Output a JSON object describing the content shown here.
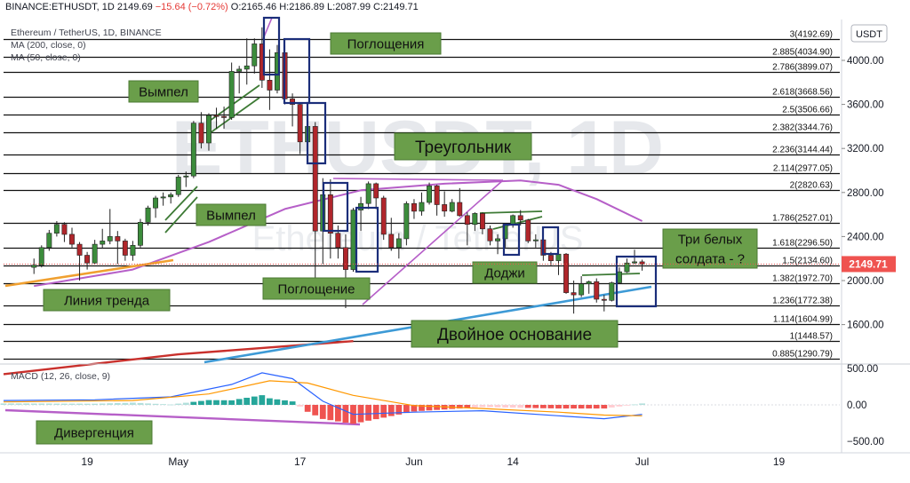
{
  "header": {
    "symbol": "BINANCE:ETHUSDT, 1D",
    "last": "2149.69",
    "change": "−15.64 (−0.72%)",
    "open": "O:2165.46",
    "high": "H:2186.89",
    "low": "L:2087.99",
    "close": "C:2149.71"
  },
  "legend": {
    "title": "Ethereum / TetherUS, 1D, BINANCE",
    "ma200": "MA (200, close, 0)",
    "ma50": "MA (50, close, 0)",
    "macd": "MACD (12, 26, close, 9)"
  },
  "watermark": {
    "symbol": "ETHUSDT, 1D",
    "name": "Ethereum / TetherUS"
  },
  "axis": {
    "currency": "USDT",
    "current_price": "2149.71",
    "price_ticks": [
      "4000.00",
      "3600.00",
      "3200.00",
      "2800.00",
      "2400.00",
      "2000.00",
      "1600.00"
    ],
    "macd_ticks": [
      "500.00",
      "0.00",
      "−500.00"
    ],
    "x_ticks": [
      "19",
      "May",
      "17",
      "Jun",
      "14",
      "Jul",
      "19"
    ]
  },
  "fib_levels": [
    {
      "label": "3(4192.69)",
      "value": 4192.69
    },
    {
      "label": "2.885(4034.90)",
      "value": 4034.9
    },
    {
      "label": "2.786(3899.07)",
      "value": 3899.07
    },
    {
      "label": "2.618(3668.56)",
      "value": 3668.56
    },
    {
      "label": "2.5(3506.66)",
      "value": 3506.66
    },
    {
      "label": "2.382(3344.76)",
      "value": 3344.76
    },
    {
      "label": "2.236(3144.44)",
      "value": 3144.44
    },
    {
      "label": "2.114(2977.05)",
      "value": 2977.05
    },
    {
      "label": "2(2820.63)",
      "value": 2820.63
    },
    {
      "label": "1.786(2527.01)",
      "value": 2527.01
    },
    {
      "label": "1.618(2296.50)",
      "value": 2296.5
    },
    {
      "label": "1.5(2134.60)",
      "value": 2134.6
    },
    {
      "label": "1.382(1972.70)",
      "value": 1972.7
    },
    {
      "label": "1.236(1772.38)",
      "value": 1772.38
    },
    {
      "label": "1.114(1604.99)",
      "value": 1604.99
    },
    {
      "label": "1(1448.57)",
      "value": 1448.57
    },
    {
      "label": "0.885(1290.79)",
      "value": 1290.79
    }
  ],
  "annotations": {
    "pogloshcheniya": "Поглощения",
    "vympel1": "Вымпел",
    "vympel2": "Вымпел",
    "treugolnik": "Треугольник",
    "pogloshchenie": "Поглощение",
    "doji": "Доджи",
    "tri_line1": "Три белых",
    "tri_line2": "солдата - ?",
    "dvoinoe": "Двойное основание",
    "liniya": "Линия тренда",
    "divergenciya": "Дивергенция"
  },
  "colors": {
    "up": "#26a69a",
    "down": "#ef5350",
    "candle_up": "#3c8c3c",
    "candle_down": "#b0262b",
    "ma50": "#b65fc8",
    "ma200": "#c9302c",
    "trend_blue": "#3d9ad6",
    "trend_orange": "#f0a030",
    "label_bg": "#6a9e4a",
    "box": "#1b2e7a"
  },
  "chart_data": {
    "type": "candlestick",
    "title": "Ethereum / TetherUS, 1D, BINANCE",
    "x_range_dates": [
      "2021-04-08",
      "2021-07-27"
    ],
    "ylim": [
      1200,
      4250
    ],
    "candles": [
      {
        "d": "2021-04-12",
        "o": 2120,
        "h": 2200,
        "l": 2060,
        "c": 2140
      },
      {
        "d": "2021-04-13",
        "o": 2140,
        "h": 2320,
        "l": 2120,
        "c": 2300
      },
      {
        "d": "2021-04-14",
        "o": 2300,
        "h": 2460,
        "l": 2270,
        "c": 2430
      },
      {
        "d": "2021-04-15",
        "o": 2430,
        "h": 2540,
        "l": 2400,
        "c": 2510
      },
      {
        "d": "2021-04-16",
        "o": 2510,
        "h": 2530,
        "l": 2350,
        "c": 2420
      },
      {
        "d": "2021-04-17",
        "o": 2420,
        "h": 2480,
        "l": 2300,
        "c": 2330
      },
      {
        "d": "2021-04-18",
        "o": 2330,
        "h": 2350,
        "l": 2000,
        "c": 2230
      },
      {
        "d": "2021-04-19",
        "o": 2230,
        "h": 2260,
        "l": 2100,
        "c": 2160
      },
      {
        "d": "2021-04-20",
        "o": 2160,
        "h": 2370,
        "l": 2150,
        "c": 2330
      },
      {
        "d": "2021-04-21",
        "o": 2330,
        "h": 2470,
        "l": 2290,
        "c": 2360
      },
      {
        "d": "2021-04-22",
        "o": 2360,
        "h": 2650,
        "l": 2330,
        "c": 2400
      },
      {
        "d": "2021-04-23",
        "o": 2400,
        "h": 2450,
        "l": 2150,
        "c": 2360
      },
      {
        "d": "2021-04-24",
        "o": 2360,
        "h": 2380,
        "l": 2180,
        "c": 2230
      },
      {
        "d": "2021-04-25",
        "o": 2230,
        "h": 2360,
        "l": 2180,
        "c": 2320
      },
      {
        "d": "2021-04-26",
        "o": 2320,
        "h": 2560,
        "l": 2300,
        "c": 2530
      },
      {
        "d": "2021-04-27",
        "o": 2530,
        "h": 2680,
        "l": 2500,
        "c": 2660
      },
      {
        "d": "2021-04-28",
        "o": 2660,
        "h": 2770,
        "l": 2570,
        "c": 2750
      },
      {
        "d": "2021-04-29",
        "o": 2750,
        "h": 2800,
        "l": 2680,
        "c": 2760
      },
      {
        "d": "2021-04-30",
        "o": 2760,
        "h": 2800,
        "l": 2700,
        "c": 2780
      },
      {
        "d": "2021-05-01",
        "o": 2780,
        "h": 2960,
        "l": 2760,
        "c": 2940
      },
      {
        "d": "2021-05-02",
        "o": 2940,
        "h": 2990,
        "l": 2850,
        "c": 2950
      },
      {
        "d": "2021-05-03",
        "o": 2950,
        "h": 3450,
        "l": 2930,
        "c": 3430
      },
      {
        "d": "2021-05-04",
        "o": 3430,
        "h": 3530,
        "l": 3200,
        "c": 3250
      },
      {
        "d": "2021-05-05",
        "o": 3250,
        "h": 3520,
        "l": 3180,
        "c": 3500
      },
      {
        "d": "2021-05-06",
        "o": 3500,
        "h": 3570,
        "l": 3380,
        "c": 3490
      },
      {
        "d": "2021-05-07",
        "o": 3490,
        "h": 3580,
        "l": 3380,
        "c": 3480
      },
      {
        "d": "2021-05-08",
        "o": 3480,
        "h": 3980,
        "l": 3460,
        "c": 3900
      },
      {
        "d": "2021-05-09",
        "o": 3900,
        "h": 3950,
        "l": 3700,
        "c": 3920
      },
      {
        "d": "2021-05-10",
        "o": 3920,
        "h": 4200,
        "l": 3780,
        "c": 3950
      },
      {
        "d": "2021-05-11",
        "o": 3950,
        "h": 4200,
        "l": 3880,
        "c": 4150
      },
      {
        "d": "2021-05-12",
        "o": 4150,
        "h": 4300,
        "l": 3750,
        "c": 3820
      },
      {
        "d": "2021-05-13",
        "o": 3820,
        "h": 4100,
        "l": 3550,
        "c": 3730
      },
      {
        "d": "2021-05-14",
        "o": 3730,
        "h": 4140,
        "l": 3700,
        "c": 4070
      },
      {
        "d": "2021-05-15",
        "o": 4070,
        "h": 4140,
        "l": 3600,
        "c": 3650
      },
      {
        "d": "2021-05-16",
        "o": 3650,
        "h": 3700,
        "l": 3400,
        "c": 3600
      },
      {
        "d": "2021-05-17",
        "o": 3600,
        "h": 3620,
        "l": 3150,
        "c": 3260
      },
      {
        "d": "2021-05-18",
        "o": 3260,
        "h": 3570,
        "l": 3240,
        "c": 3400
      },
      {
        "d": "2021-05-19",
        "o": 3400,
        "h": 3440,
        "l": 1900,
        "c": 2450
      },
      {
        "d": "2021-05-20",
        "o": 2450,
        "h": 2930,
        "l": 2150,
        "c": 2780
      },
      {
        "d": "2021-05-21",
        "o": 2780,
        "h": 2920,
        "l": 2200,
        "c": 2430
      },
      {
        "d": "2021-05-22",
        "o": 2430,
        "h": 2500,
        "l": 2200,
        "c": 2300
      },
      {
        "d": "2021-05-23",
        "o": 2300,
        "h": 2420,
        "l": 1750,
        "c": 2100
      },
      {
        "d": "2021-05-24",
        "o": 2100,
        "h": 2660,
        "l": 2080,
        "c": 2640
      },
      {
        "d": "2021-05-25",
        "o": 2640,
        "h": 2760,
        "l": 2450,
        "c": 2700
      },
      {
        "d": "2021-05-26",
        "o": 2700,
        "h": 2900,
        "l": 2650,
        "c": 2880
      },
      {
        "d": "2021-05-27",
        "o": 2880,
        "h": 2890,
        "l": 2650,
        "c": 2750
      },
      {
        "d": "2021-05-28",
        "o": 2750,
        "h": 2770,
        "l": 2370,
        "c": 2420
      },
      {
        "d": "2021-05-29",
        "o": 2420,
        "h": 2570,
        "l": 2270,
        "c": 2300
      },
      {
        "d": "2021-05-30",
        "o": 2300,
        "h": 2430,
        "l": 2200,
        "c": 2380
      },
      {
        "d": "2021-05-31",
        "o": 2380,
        "h": 2720,
        "l": 2320,
        "c": 2700
      },
      {
        "d": "2021-06-01",
        "o": 2700,
        "h": 2740,
        "l": 2560,
        "c": 2630
      },
      {
        "d": "2021-06-02",
        "o": 2630,
        "h": 2800,
        "l": 2590,
        "c": 2710
      },
      {
        "d": "2021-06-03",
        "o": 2710,
        "h": 2890,
        "l": 2690,
        "c": 2860
      },
      {
        "d": "2021-06-04",
        "o": 2860,
        "h": 2870,
        "l": 2590,
        "c": 2690
      },
      {
        "d": "2021-06-05",
        "o": 2690,
        "h": 2810,
        "l": 2580,
        "c": 2630
      },
      {
        "d": "2021-06-06",
        "o": 2630,
        "h": 2740,
        "l": 2620,
        "c": 2710
      },
      {
        "d": "2021-06-07",
        "o": 2710,
        "h": 2840,
        "l": 2580,
        "c": 2590
      },
      {
        "d": "2021-06-08",
        "o": 2590,
        "h": 2620,
        "l": 2320,
        "c": 2510
      },
      {
        "d": "2021-06-09",
        "o": 2510,
        "h": 2620,
        "l": 2450,
        "c": 2610
      },
      {
        "d": "2021-06-10",
        "o": 2610,
        "h": 2620,
        "l": 2420,
        "c": 2470
      },
      {
        "d": "2021-06-11",
        "o": 2470,
        "h": 2500,
        "l": 2320,
        "c": 2360
      },
      {
        "d": "2021-06-12",
        "o": 2360,
        "h": 2420,
        "l": 2240,
        "c": 2380
      },
      {
        "d": "2021-06-13",
        "o": 2380,
        "h": 2520,
        "l": 2300,
        "c": 2510
      },
      {
        "d": "2021-06-14",
        "o": 2510,
        "h": 2600,
        "l": 2480,
        "c": 2590
      },
      {
        "d": "2021-06-15",
        "o": 2590,
        "h": 2640,
        "l": 2500,
        "c": 2550
      },
      {
        "d": "2021-06-16",
        "o": 2550,
        "h": 2560,
        "l": 2340,
        "c": 2360
      },
      {
        "d": "2021-06-17",
        "o": 2360,
        "h": 2420,
        "l": 2300,
        "c": 2370
      },
      {
        "d": "2021-06-18",
        "o": 2370,
        "h": 2390,
        "l": 2180,
        "c": 2230
      },
      {
        "d": "2021-06-19",
        "o": 2230,
        "h": 2260,
        "l": 2140,
        "c": 2180
      },
      {
        "d": "2021-06-20",
        "o": 2180,
        "h": 2250,
        "l": 2050,
        "c": 2240
      },
      {
        "d": "2021-06-21",
        "o": 2240,
        "h": 2250,
        "l": 1880,
        "c": 1890
      },
      {
        "d": "2021-06-22",
        "o": 1890,
        "h": 2000,
        "l": 1700,
        "c": 1870
      },
      {
        "d": "2021-06-23",
        "o": 1870,
        "h": 2040,
        "l": 1850,
        "c": 1970
      },
      {
        "d": "2021-06-24",
        "o": 1970,
        "h": 2000,
        "l": 1880,
        "c": 1990
      },
      {
        "d": "2021-06-25",
        "o": 1990,
        "h": 2020,
        "l": 1800,
        "c": 1830
      },
      {
        "d": "2021-06-26",
        "o": 1830,
        "h": 1870,
        "l": 1720,
        "c": 1820
      },
      {
        "d": "2021-06-27",
        "o": 1820,
        "h": 1990,
        "l": 1810,
        "c": 1980
      },
      {
        "d": "2021-06-28",
        "o": 1980,
        "h": 2120,
        "l": 1970,
        "c": 2080
      },
      {
        "d": "2021-06-29",
        "o": 2080,
        "h": 2200,
        "l": 2070,
        "c": 2160
      },
      {
        "d": "2021-06-30",
        "o": 2160,
        "h": 2280,
        "l": 2150,
        "c": 2170
      },
      {
        "d": "2021-07-01",
        "o": 2170,
        "h": 2190,
        "l": 2090,
        "c": 2149.71
      }
    ],
    "ma50": [
      {
        "d": "2021-04-12",
        "v": 1950
      },
      {
        "d": "2021-04-25",
        "v": 2100
      },
      {
        "d": "2021-05-05",
        "v": 2350
      },
      {
        "d": "2021-05-15",
        "v": 2650
      },
      {
        "d": "2021-05-25",
        "v": 2820
      },
      {
        "d": "2021-06-05",
        "v": 2880
      },
      {
        "d": "2021-06-15",
        "v": 2910
      },
      {
        "d": "2021-06-20",
        "v": 2870
      },
      {
        "d": "2021-06-25",
        "v": 2740
      },
      {
        "d": "2021-07-01",
        "v": 2540
      }
    ],
    "ma200": [
      {
        "d": "2021-04-08",
        "v": 1150
      },
      {
        "d": "2021-05-01",
        "v": 1330
      },
      {
        "d": "2021-05-24",
        "v": 1450
      }
    ],
    "macd": {
      "macd_line": [
        {
          "d": "2021-04-08",
          "v": 60
        },
        {
          "d": "2021-04-20",
          "v": 70
        },
        {
          "d": "2021-04-30",
          "v": 110
        },
        {
          "d": "2021-05-08",
          "v": 280
        },
        {
          "d": "2021-05-12",
          "v": 440
        },
        {
          "d": "2021-05-16",
          "v": 360
        },
        {
          "d": "2021-05-20",
          "v": 50
        },
        {
          "d": "2021-05-24",
          "v": -130
        },
        {
          "d": "2021-06-01",
          "v": -100
        },
        {
          "d": "2021-06-10",
          "v": -80
        },
        {
          "d": "2021-06-20",
          "v": -150
        },
        {
          "d": "2021-06-26",
          "v": -190
        },
        {
          "d": "2021-07-01",
          "v": -130
        }
      ],
      "signal_line": [
        {
          "d": "2021-04-08",
          "v": 40
        },
        {
          "d": "2021-04-25",
          "v": 60
        },
        {
          "d": "2021-05-05",
          "v": 150
        },
        {
          "d": "2021-05-13",
          "v": 330
        },
        {
          "d": "2021-05-18",
          "v": 300
        },
        {
          "d": "2021-05-24",
          "v": 130
        },
        {
          "d": "2021-06-01",
          "v": -10
        },
        {
          "d": "2021-06-10",
          "v": -50
        },
        {
          "d": "2021-06-20",
          "v": -100
        },
        {
          "d": "2021-06-26",
          "v": -140
        },
        {
          "d": "2021-07-01",
          "v": -150
        }
      ],
      "ylim": [
        -520,
        520
      ]
    }
  }
}
